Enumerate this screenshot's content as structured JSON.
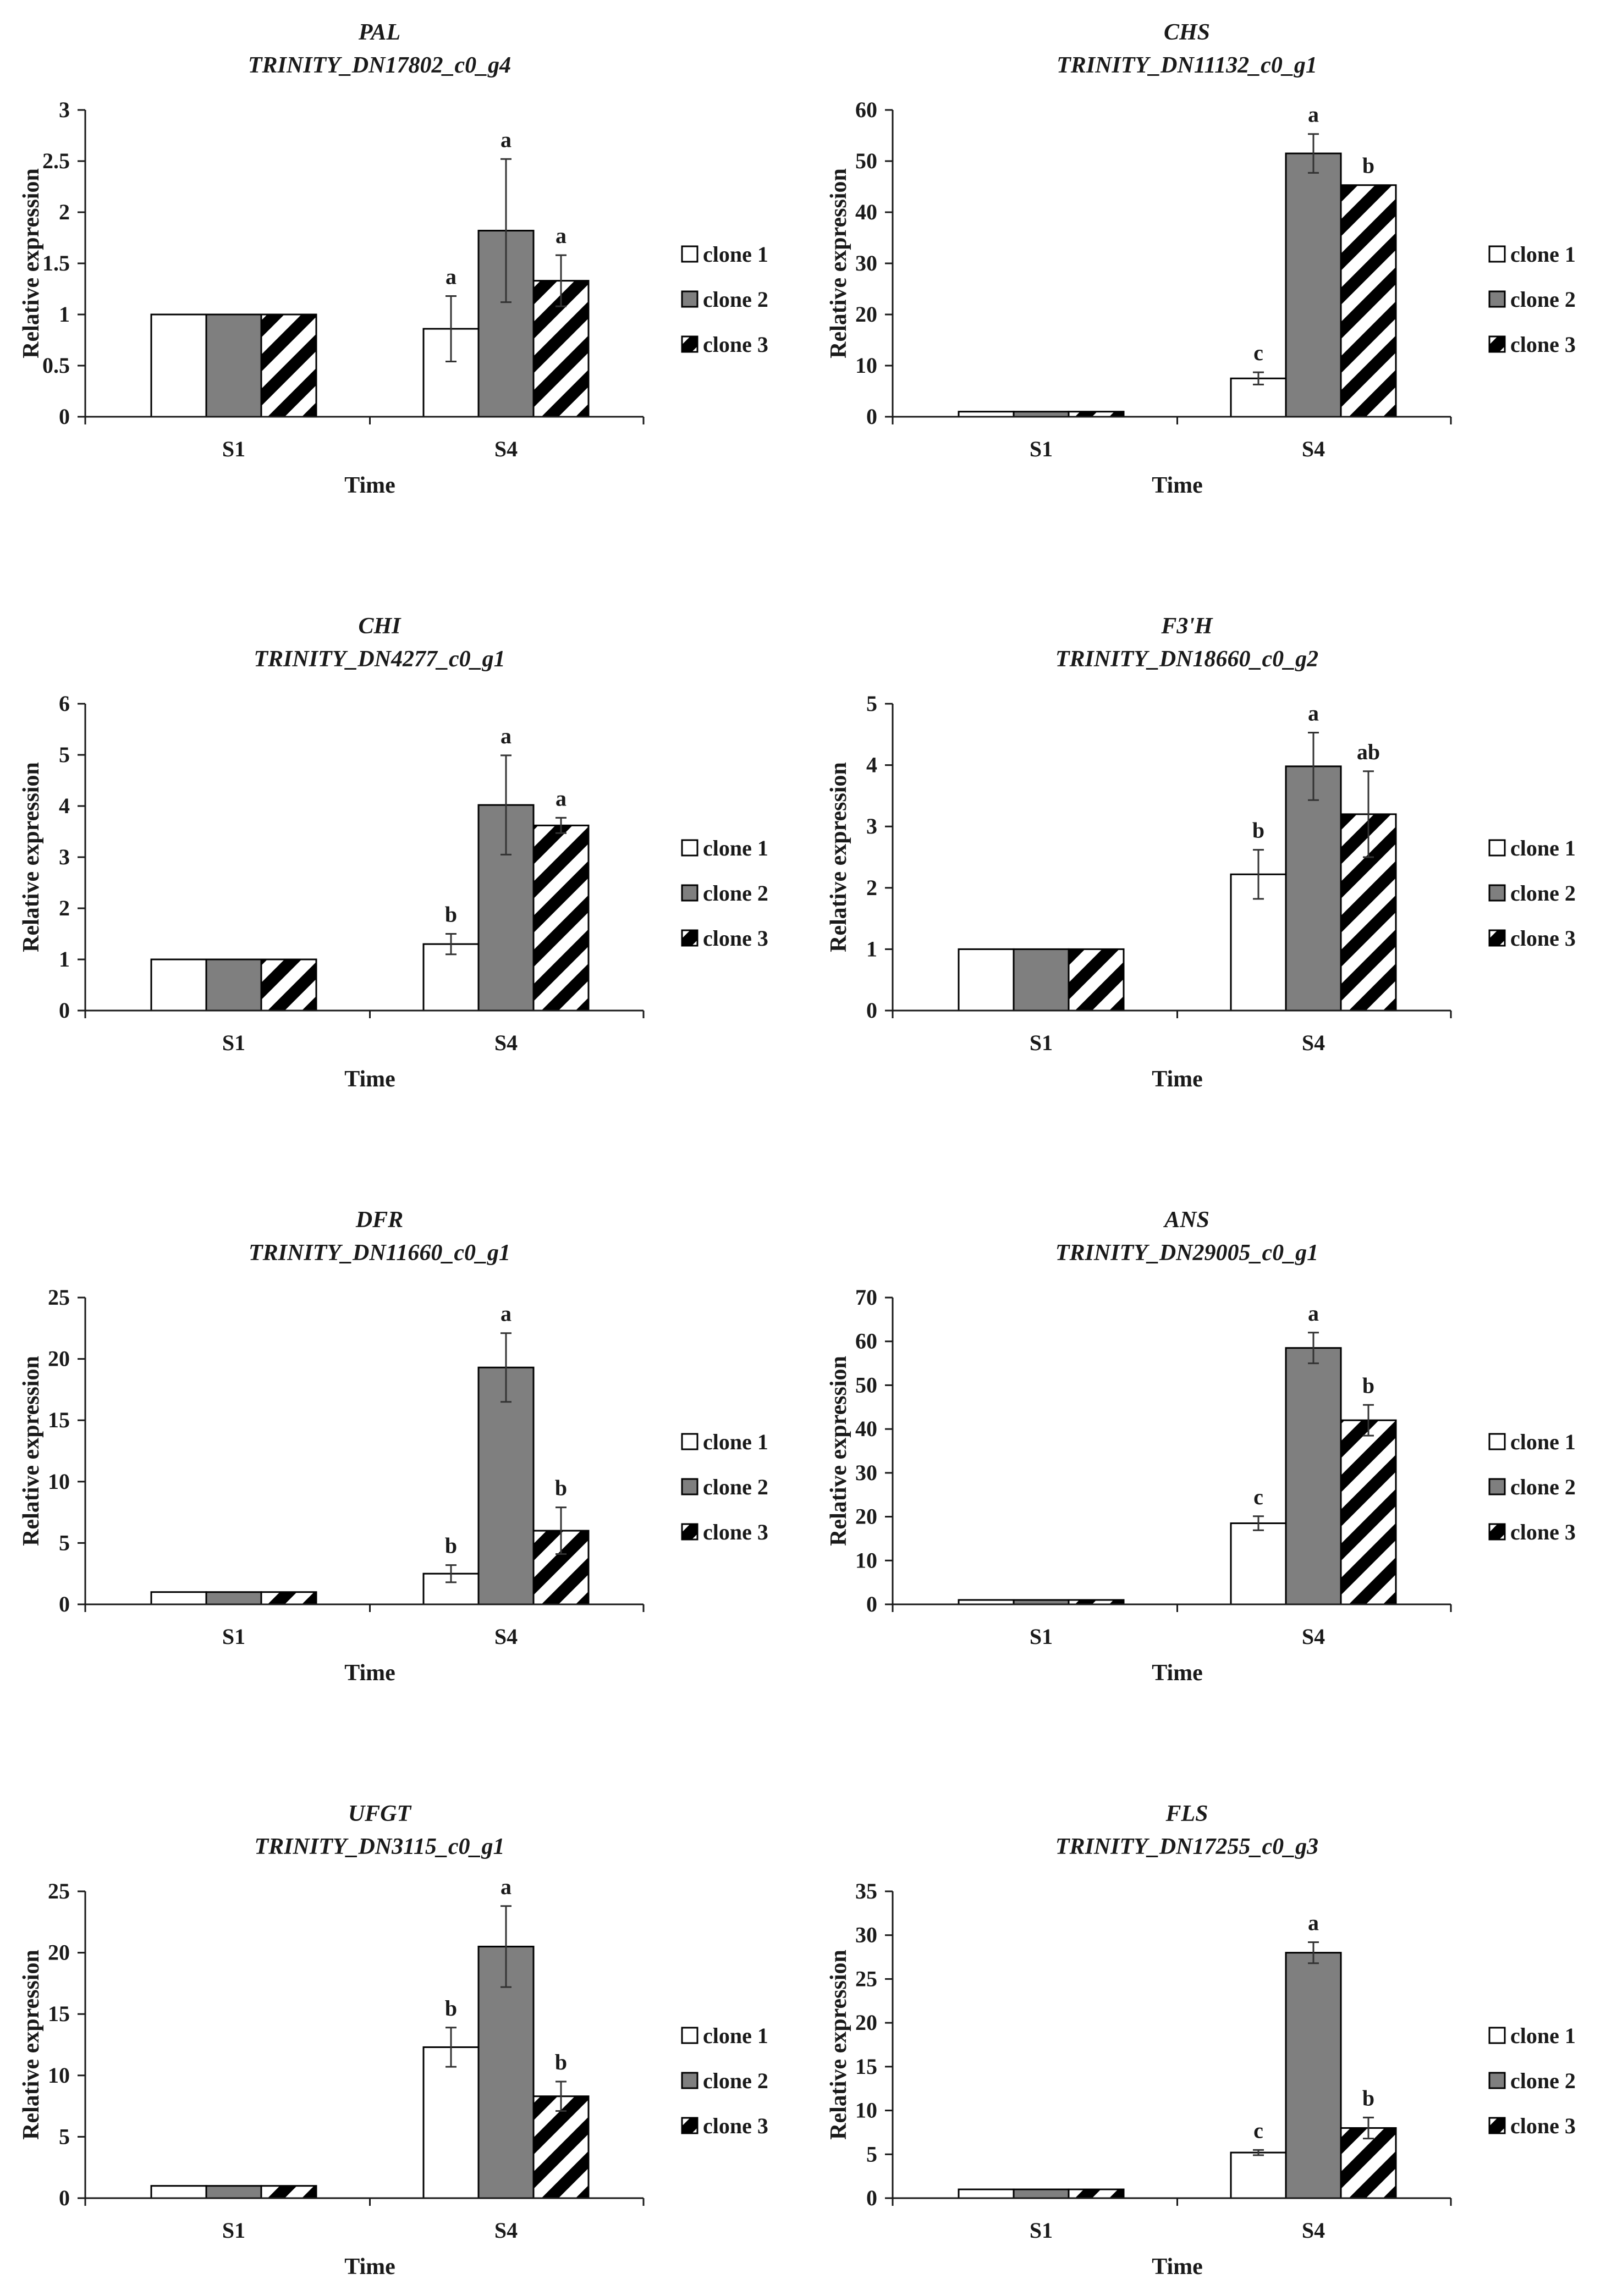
{
  "figure": {
    "xlabel": "Time",
    "ylabel": "Relative expression",
    "legend": [
      "clone 1",
      "clone 2",
      "clone 3"
    ],
    "colors": {
      "clone1": "#ffffff",
      "clone2": "#7f7f7f",
      "clone3_stripe": "#000000",
      "axis": "#1a1a1a"
    }
  },
  "chart_data": [
    {
      "type": "bar",
      "gene": "PAL",
      "transcript": "TRINITY_DN17802_c0_g4",
      "categories": [
        "S1",
        "S4"
      ],
      "ylim": [
        0,
        3
      ],
      "yticks": [
        "0",
        "0.5",
        "1",
        "1.5",
        "2",
        "2.5",
        "3"
      ],
      "ytick_values": [
        0,
        0.5,
        1,
        1.5,
        2,
        2.5,
        3
      ],
      "series": [
        {
          "name": "clone 1",
          "values": [
            1,
            0.86
          ],
          "errors": [
            0,
            0.32
          ],
          "labels": [
            "",
            "a"
          ]
        },
        {
          "name": "clone 2",
          "values": [
            1,
            1.82
          ],
          "errors": [
            0,
            0.7
          ],
          "labels": [
            "",
            "a"
          ]
        },
        {
          "name": "clone 3",
          "values": [
            1,
            1.33
          ],
          "errors": [
            0,
            0.25
          ],
          "labels": [
            "",
            "a"
          ]
        }
      ]
    },
    {
      "type": "bar",
      "gene": "CHS",
      "transcript": "TRINITY_DN11132_c0_g1",
      "categories": [
        "S1",
        "S4"
      ],
      "ylim": [
        0,
        60
      ],
      "yticks": [
        "0",
        "10",
        "20",
        "30",
        "40",
        "50",
        "60"
      ],
      "ytick_values": [
        0,
        10,
        20,
        30,
        40,
        50,
        60
      ],
      "series": [
        {
          "name": "clone 1",
          "values": [
            1,
            7.5
          ],
          "errors": [
            0,
            1.2
          ],
          "labels": [
            "",
            "c"
          ]
        },
        {
          "name": "clone 2",
          "values": [
            1,
            51.5
          ],
          "errors": [
            0,
            3.8
          ],
          "labels": [
            "",
            "a"
          ]
        },
        {
          "name": "clone 3",
          "values": [
            1,
            45.3
          ],
          "errors": [
            0,
            0
          ],
          "labels": [
            "",
            "b"
          ]
        }
      ]
    },
    {
      "type": "bar",
      "gene": "CHI",
      "transcript": "TRINITY_DN4277_c0_g1",
      "categories": [
        "S1",
        "S4"
      ],
      "ylim": [
        0,
        6
      ],
      "yticks": [
        "0",
        "1",
        "2",
        "3",
        "4",
        "5",
        "6"
      ],
      "ytick_values": [
        0,
        1,
        2,
        3,
        4,
        5,
        6
      ],
      "series": [
        {
          "name": "clone 1",
          "values": [
            1,
            1.3
          ],
          "errors": [
            0,
            0.2
          ],
          "labels": [
            "",
            "b"
          ]
        },
        {
          "name": "clone 2",
          "values": [
            1,
            4.02
          ],
          "errors": [
            0,
            0.97
          ],
          "labels": [
            "",
            "a"
          ]
        },
        {
          "name": "clone 3",
          "values": [
            1,
            3.62
          ],
          "errors": [
            0,
            0.15
          ],
          "labels": [
            "",
            "a"
          ]
        }
      ]
    },
    {
      "type": "bar",
      "gene": "F3'H",
      "transcript": "TRINITY_DN18660_c0_g2",
      "categories": [
        "S1",
        "S4"
      ],
      "ylim": [
        0,
        5
      ],
      "yticks": [
        "0",
        "1",
        "2",
        "3",
        "4",
        "5"
      ],
      "ytick_values": [
        0,
        1,
        2,
        3,
        4,
        5
      ],
      "series": [
        {
          "name": "clone 1",
          "values": [
            1,
            2.22
          ],
          "errors": [
            0,
            0.4
          ],
          "labels": [
            "",
            "b"
          ]
        },
        {
          "name": "clone 2",
          "values": [
            1,
            3.98
          ],
          "errors": [
            0,
            0.55
          ],
          "labels": [
            "",
            "a"
          ]
        },
        {
          "name": "clone 3",
          "values": [
            1,
            3.2
          ],
          "errors": [
            0,
            0.7
          ],
          "labels": [
            "",
            "ab"
          ]
        }
      ]
    },
    {
      "type": "bar",
      "gene": "DFR",
      "transcript": "TRINITY_DN11660_c0_g1",
      "categories": [
        "S1",
        "S4"
      ],
      "ylim": [
        0,
        25
      ],
      "yticks": [
        "0",
        "5",
        "10",
        "15",
        "20",
        "25"
      ],
      "ytick_values": [
        0,
        5,
        10,
        15,
        20,
        25
      ],
      "series": [
        {
          "name": "clone 1",
          "values": [
            1,
            2.5
          ],
          "errors": [
            0,
            0.7
          ],
          "labels": [
            "",
            "b"
          ]
        },
        {
          "name": "clone 2",
          "values": [
            1,
            19.3
          ],
          "errors": [
            0,
            2.8
          ],
          "labels": [
            "",
            "a"
          ]
        },
        {
          "name": "clone 3",
          "values": [
            1,
            6.0
          ],
          "errors": [
            0,
            1.9
          ],
          "labels": [
            "",
            "b"
          ]
        }
      ]
    },
    {
      "type": "bar",
      "gene": "ANS",
      "transcript": "TRINITY_DN29005_c0_g1",
      "categories": [
        "S1",
        "S4"
      ],
      "ylim": [
        0,
        70
      ],
      "yticks": [
        "0",
        "10",
        "20",
        "30",
        "40",
        "50",
        "60",
        "70"
      ],
      "ytick_values": [
        0,
        10,
        20,
        30,
        40,
        50,
        60,
        70
      ],
      "series": [
        {
          "name": "clone 1",
          "values": [
            1,
            18.5
          ],
          "errors": [
            0,
            1.6
          ],
          "labels": [
            "",
            "c"
          ]
        },
        {
          "name": "clone 2",
          "values": [
            1,
            58.5
          ],
          "errors": [
            0,
            3.5
          ],
          "labels": [
            "",
            "a"
          ]
        },
        {
          "name": "clone 3",
          "values": [
            1,
            42.0
          ],
          "errors": [
            0,
            3.5
          ],
          "labels": [
            "",
            "b"
          ]
        }
      ]
    },
    {
      "type": "bar",
      "gene": "UFGT",
      "transcript": "TRINITY_DN3115_c0_g1",
      "categories": [
        "S1",
        "S4"
      ],
      "ylim": [
        0,
        25
      ],
      "yticks": [
        "0",
        "5",
        "10",
        "15",
        "20",
        "25"
      ],
      "ytick_values": [
        0,
        5,
        10,
        15,
        20,
        25
      ],
      "series": [
        {
          "name": "clone 1",
          "values": [
            1,
            12.3
          ],
          "errors": [
            0,
            1.6
          ],
          "labels": [
            "",
            "b"
          ]
        },
        {
          "name": "clone 2",
          "values": [
            1,
            20.5
          ],
          "errors": [
            0,
            3.3
          ],
          "labels": [
            "",
            "a"
          ]
        },
        {
          "name": "clone 3",
          "values": [
            1,
            8.3
          ],
          "errors": [
            0,
            1.2
          ],
          "labels": [
            "",
            "b"
          ]
        }
      ]
    },
    {
      "type": "bar",
      "gene": "FLS",
      "transcript": "TRINITY_DN17255_c0_g3",
      "categories": [
        "S1",
        "S4"
      ],
      "ylim": [
        0,
        35
      ],
      "yticks": [
        "0",
        "5",
        "10",
        "15",
        "20",
        "25",
        "30",
        "35"
      ],
      "ytick_values": [
        0,
        5,
        10,
        15,
        20,
        25,
        30,
        35
      ],
      "series": [
        {
          "name": "clone 1",
          "values": [
            1,
            5.2
          ],
          "errors": [
            0,
            0.3
          ],
          "labels": [
            "",
            "c"
          ]
        },
        {
          "name": "clone 2",
          "values": [
            1,
            28.0
          ],
          "errors": [
            0,
            1.2
          ],
          "labels": [
            "",
            "a"
          ]
        },
        {
          "name": "clone 3",
          "values": [
            1,
            8.0
          ],
          "errors": [
            0,
            1.2
          ],
          "labels": [
            "",
            "b"
          ]
        }
      ]
    }
  ]
}
